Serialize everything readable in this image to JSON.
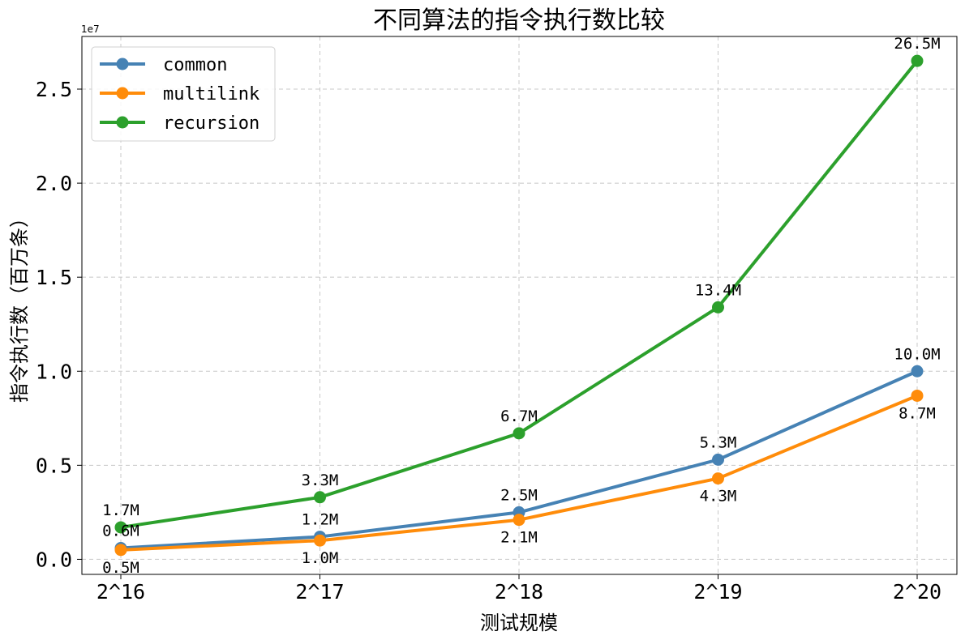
{
  "chart_data": {
    "type": "line",
    "title": "不同算法的指令执行数比较",
    "xlabel": "测试规模",
    "ylabel": "指令执行数（百万条）",
    "y_offset_text": "1e7",
    "categories": [
      "2^16",
      "2^17",
      "2^18",
      "2^19",
      "2^20"
    ],
    "ylim": [
      -0.08,
      2.78
    ],
    "yticks": [
      0.0,
      0.5,
      1.0,
      1.5,
      2.0,
      2.5
    ],
    "ytick_labels": [
      "0.0",
      "0.5",
      "1.0",
      "1.5",
      "2.0",
      "2.5"
    ],
    "y_scale_note": "values in units of 1e7",
    "grid": true,
    "legend_position": "top-left",
    "series": [
      {
        "name": "common",
        "color": "#4682b4",
        "values": [
          0.06,
          0.12,
          0.25,
          0.53,
          1.0
        ],
        "labels": [
          "0.6M",
          "1.2M",
          "2.5M",
          "5.3M",
          "10.0M"
        ],
        "label_side": [
          "above",
          "above",
          "above",
          "above",
          "above"
        ]
      },
      {
        "name": "multilink",
        "color": "#ff8c0a",
        "values": [
          0.05,
          0.1,
          0.21,
          0.43,
          0.87
        ],
        "labels": [
          "0.5M",
          "1.0M",
          "2.1M",
          "4.3M",
          "8.7M"
        ],
        "label_side": [
          "below",
          "below",
          "below",
          "below",
          "below"
        ]
      },
      {
        "name": "recursion",
        "color": "#2ca02c",
        "values": [
          0.17,
          0.33,
          0.67,
          1.34,
          2.65
        ],
        "labels": [
          "1.7M",
          "3.3M",
          "6.7M",
          "13.4M",
          "26.5M"
        ],
        "label_side": [
          "above",
          "above",
          "above",
          "above",
          "above"
        ]
      }
    ]
  }
}
